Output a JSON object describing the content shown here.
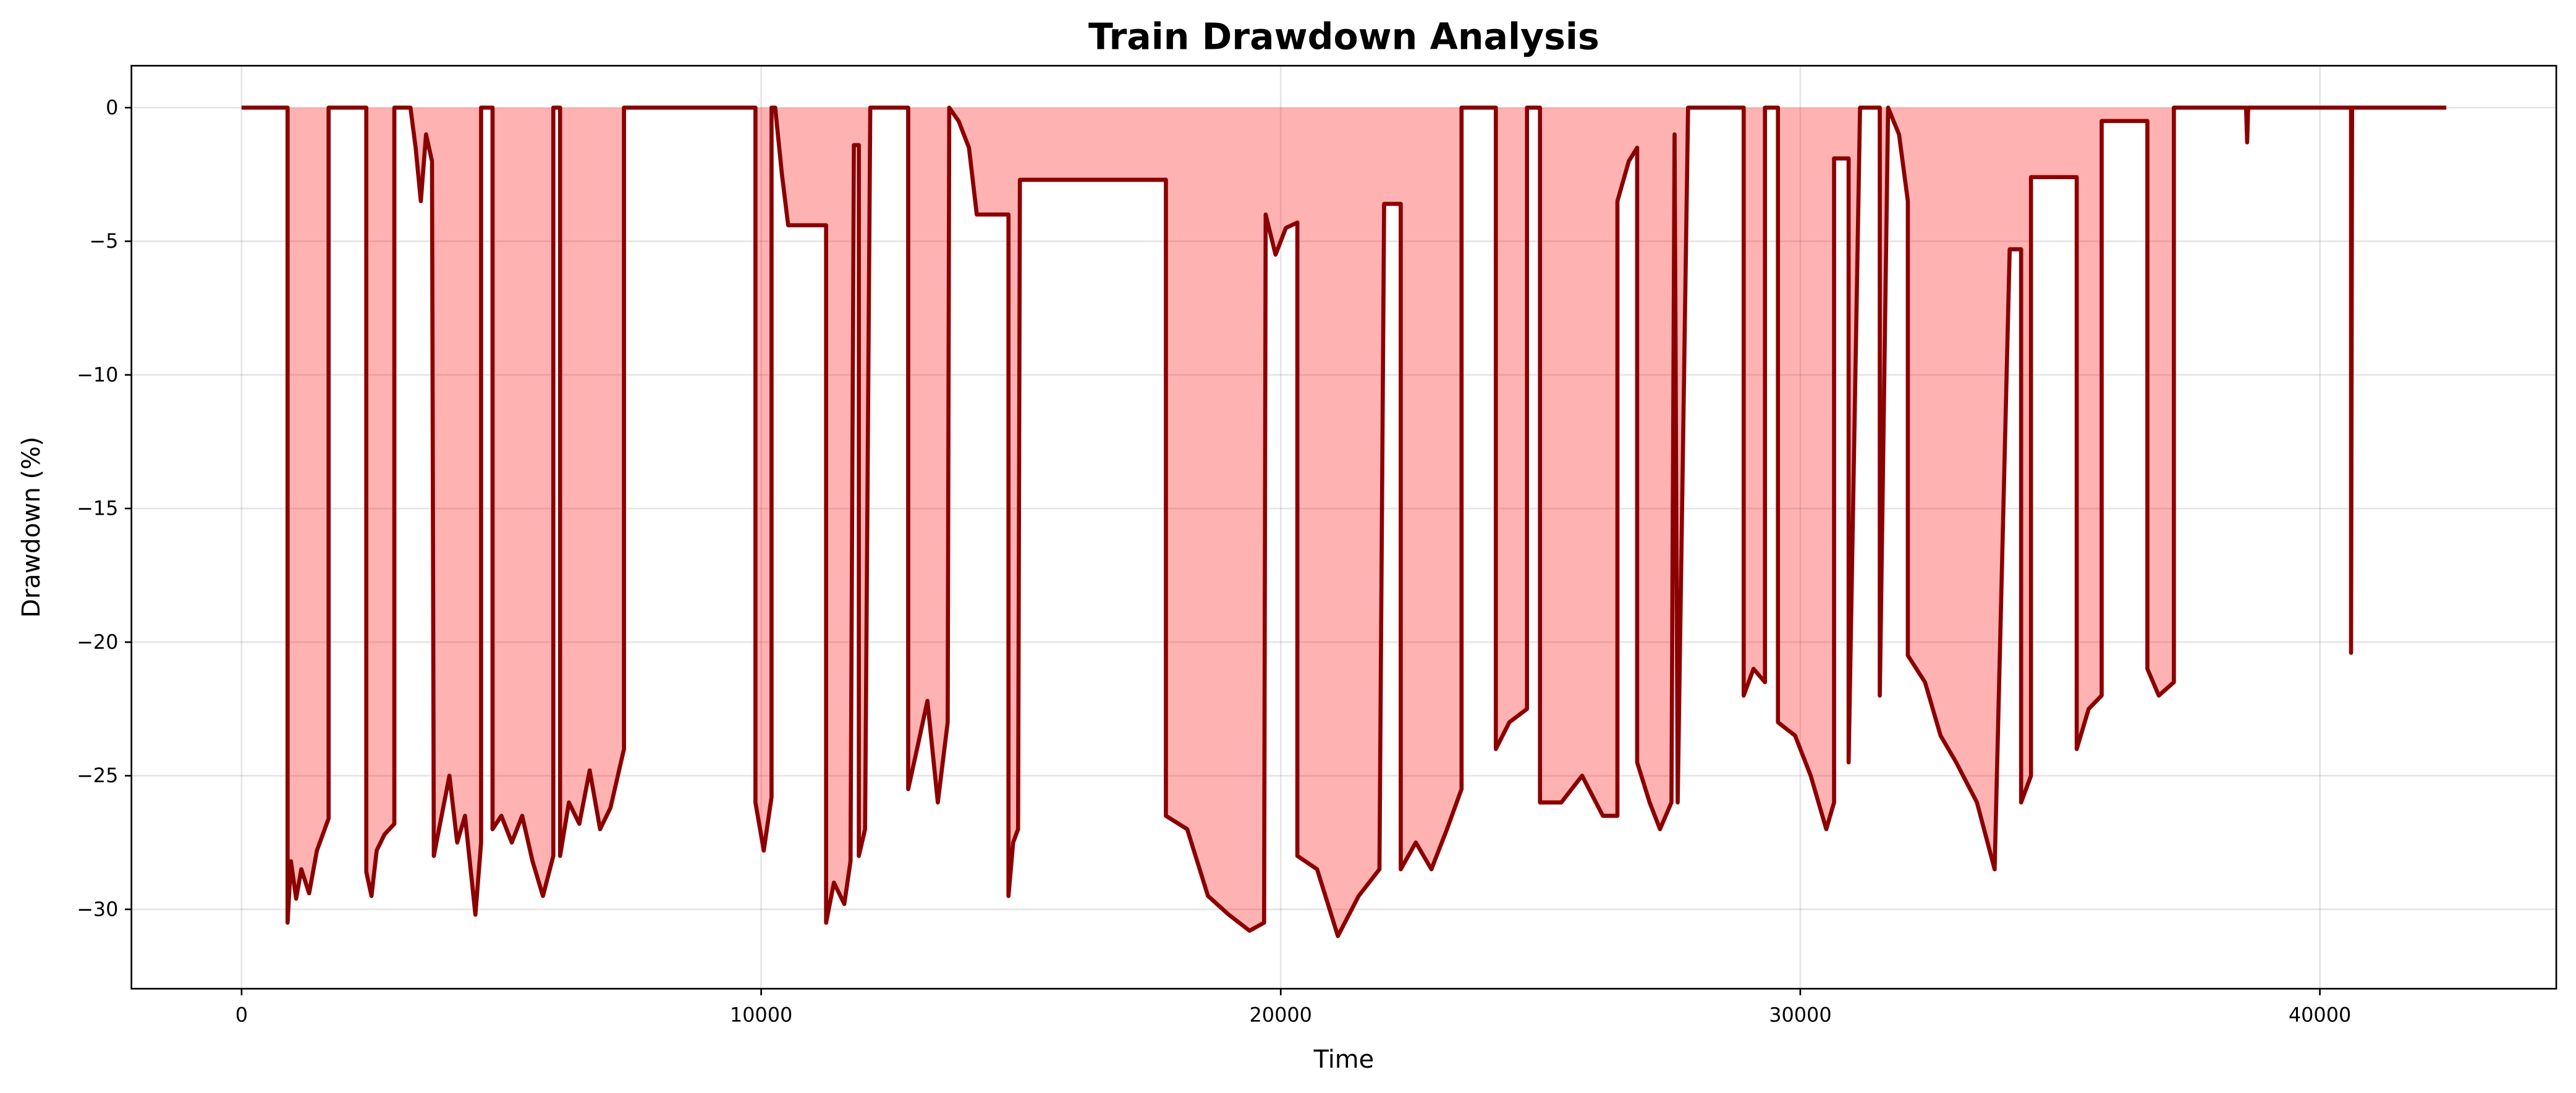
{
  "chart_data": {
    "type": "area-line",
    "title": "Train Drawdown Analysis",
    "x_label": "Time",
    "y_label": "Drawdown (%)",
    "x": [
      0,
      885,
      885,
      950,
      1050,
      1150,
      1300,
      1450,
      1600,
      1675,
      1675,
      2400,
      2400,
      2500,
      2600,
      2750,
      2940,
      2940,
      3250,
      3350,
      3450,
      3550,
      3665,
      3700,
      3850,
      4000,
      4150,
      4300,
      4500,
      4610,
      4610,
      4830,
      4830,
      5000,
      5200,
      5400,
      5600,
      5800,
      6000,
      6000,
      6130,
      6130,
      6300,
      6500,
      6700,
      6900,
      7100,
      7360,
      7360,
      9890,
      9890,
      10050,
      10200,
      10200,
      10270,
      10400,
      10520,
      11250,
      11250,
      11400,
      11600,
      11720,
      11785,
      11880,
      11880,
      12000,
      12100,
      12830,
      12830,
      13000,
      13200,
      13400,
      13590,
      13620,
      13800,
      14000,
      14150,
      14760,
      14760,
      14850,
      14945,
      14980,
      17790,
      17790,
      18200,
      18600,
      19000,
      19400,
      19680,
      19710,
      19900,
      20100,
      20320,
      20320,
      20700,
      21100,
      21500,
      21900,
      21990,
      22310,
      22310,
      22600,
      22900,
      23200,
      23480,
      23480,
      24140,
      24140,
      24400,
      24740,
      24740,
      24990,
      24990,
      25400,
      25800,
      26200,
      26480,
      26480,
      26700,
      26860,
      26860,
      27100,
      27300,
      27520,
      27580,
      27640,
      27840,
      28910,
      28910,
      29100,
      29320,
      29320,
      29570,
      29570,
      29900,
      30200,
      30500,
      30650,
      30650,
      30930,
      30930,
      31150,
      31530,
      31530,
      31690,
      31900,
      32070,
      32070,
      32400,
      32700,
      33000,
      33400,
      33740,
      34030,
      34250,
      34250,
      34440,
      34440,
      35320,
      35320,
      35550,
      35800,
      35800,
      36680,
      36680,
      36900,
      37190,
      37190,
      38580,
      38600,
      38620,
      40600,
      40600,
      40620,
      42433
    ],
    "series": [
      {
        "name": "Drawdown",
        "color": "#8b0000",
        "fill": "#ff0000",
        "fill_opacity": 0.3,
        "values": [
          0,
          0,
          -30.5,
          -28.2,
          -29.6,
          -28.5,
          -29.4,
          -27.8,
          -27,
          -26.6,
          0,
          0,
          -28.6,
          -29.5,
          -27.8,
          -27.2,
          -26.8,
          0,
          0,
          -1.5,
          -3.5,
          -1,
          -2,
          -28,
          -26.5,
          -25,
          -27.5,
          -26.5,
          -30.2,
          -27.5,
          0,
          0,
          -27,
          -26.5,
          -27.5,
          -26.5,
          -28.2,
          -29.5,
          -28,
          0,
          0,
          -28,
          -26,
          -26.8,
          -24.8,
          -27,
          -26.2,
          -24,
          0,
          0,
          -26,
          -27.8,
          -25.8,
          0,
          0,
          -2.5,
          -4.4,
          -4.4,
          -30.5,
          -29,
          -29.8,
          -28.2,
          -1.4,
          -1.4,
          -28,
          -27,
          0,
          0,
          -25.5,
          -24,
          -22.2,
          -26,
          -23,
          0,
          -0.5,
          -1.5,
          -4,
          -4,
          -29.5,
          -27.5,
          -27,
          -2.7,
          -2.7,
          -26.5,
          -27,
          -29.5,
          -30.2,
          -30.8,
          -30.5,
          -4,
          -5.5,
          -4.5,
          -4.3,
          -28,
          -28.5,
          -31,
          -29.5,
          -28.5,
          -3.6,
          -3.6,
          -28.5,
          -27.5,
          -28.5,
          -27,
          -25.5,
          0,
          0,
          -24,
          -23,
          -22.5,
          0,
          0,
          -26,
          -26,
          -25,
          -26.5,
          -26.5,
          -3.5,
          -2,
          -1.5,
          -24.5,
          -26,
          -27,
          -26,
          -1,
          -26,
          0,
          0,
          -22,
          -21,
          -21.5,
          0,
          0,
          -23,
          -23.5,
          -25,
          -27,
          -26,
          -1.9,
          -1.9,
          -24.5,
          0,
          0,
          -22,
          0,
          -1,
          -3.5,
          -20.5,
          -21.5,
          -23.5,
          -24.5,
          -26,
          -28.5,
          -5.3,
          -5.3,
          -26,
          -25,
          -2.6,
          -2.6,
          -24,
          -22.5,
          -22,
          -0.5,
          -0.5,
          -21,
          -22,
          -21.5,
          0,
          0,
          -1.3,
          0,
          0,
          -20.4,
          0,
          0
        ]
      }
    ],
    "xlim": [
      -2120,
      44550
    ],
    "ylim": [
      -32.97,
      1.57
    ],
    "xticks": [
      0,
      10000,
      20000,
      30000,
      40000
    ],
    "yticks": [
      0,
      {
        "value": -5,
        "label": "−5"
      },
      {
        "value": -10,
        "label": "−10"
      },
      {
        "value": -15,
        "label": "−15"
      },
      {
        "value": -20,
        "label": "−20"
      },
      {
        "value": -25,
        "label": "−25"
      },
      {
        "value": -30,
        "label": "−30"
      }
    ],
    "grid": true
  }
}
